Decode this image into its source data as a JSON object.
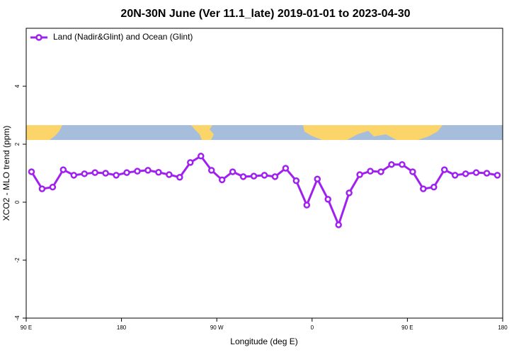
{
  "chart_data": {
    "type": "line",
    "title": "20N-30N June (Ver 11.1_late)   2019-01-01 to 2023-04-30",
    "xlabel": "Longitude (deg E)",
    "ylabel": "XCO2 - MLO trend (ppm)",
    "xlim": [
      90,
      540
    ],
    "xticks": [
      {
        "value": 90,
        "label": "90 E"
      },
      {
        "value": 180,
        "label": "180"
      },
      {
        "value": 270,
        "label": "90 W"
      },
      {
        "value": 360,
        "label": "0"
      },
      {
        "value": 450,
        "label": "90 E"
      },
      {
        "value": 540,
        "label": "180"
      }
    ],
    "ylim": [
      -4,
      6
    ],
    "yticks": [
      -4,
      -2,
      0,
      2,
      4
    ],
    "legend": "top-left",
    "x": [
      95,
      105,
      115,
      125,
      135,
      145,
      155,
      165,
      175,
      185,
      195,
      205,
      215,
      225,
      235,
      245,
      255,
      265,
      275,
      285,
      295,
      305,
      315,
      325,
      335,
      345,
      355,
      365,
      375,
      385,
      395,
      405,
      415,
      425,
      435,
      445,
      455,
      465,
      475,
      485,
      495,
      505,
      515,
      525,
      535
    ],
    "series": [
      {
        "name": "Land (Nadir&Glint) and Ocean (Glint)",
        "color": "#a020f0",
        "values": [
          1.05,
          0.46,
          0.52,
          1.12,
          0.93,
          0.98,
          1.02,
          1.0,
          0.93,
          1.02,
          1.07,
          1.1,
          1.03,
          0.95,
          0.86,
          1.37,
          1.59,
          1.1,
          0.77,
          1.05,
          0.88,
          0.9,
          0.93,
          0.88,
          1.17,
          0.74,
          -0.1,
          0.8,
          0.1,
          -0.78,
          0.32,
          0.95,
          1.07,
          1.05,
          1.3,
          1.3,
          1.05,
          0.46,
          0.52,
          1.12,
          0.93,
          0.98,
          1.02,
          1.0,
          0.93
        ]
      }
    ]
  }
}
